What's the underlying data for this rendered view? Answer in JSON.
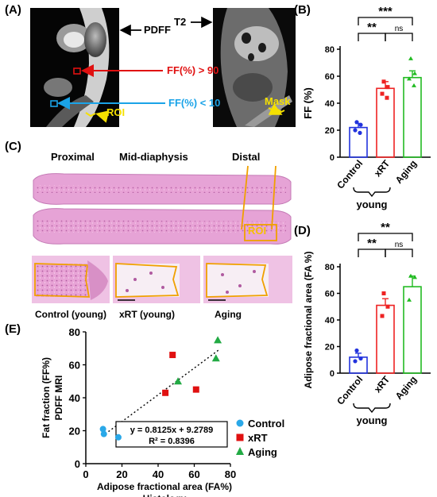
{
  "panels": {
    "a": "(A)",
    "b": "(B)",
    "c": "(C)",
    "d": "(D)",
    "e": "(E)"
  },
  "panel_a": {
    "pdff_label": "PDFF",
    "t2_label": "T2",
    "ff_high": "FF(%) > 90",
    "ff_low": "FF(%) < 10",
    "roi_label": "ROI",
    "mask_label": "Mask",
    "colors": {
      "high": "#e01010",
      "low": "#1aa3e8",
      "roi": "#f5e000"
    }
  },
  "panel_c": {
    "proximal": "Proximal",
    "mid": "Mid-diaphysis",
    "distal": "Distal",
    "roi_label": "ROI",
    "captions": [
      "Control (young)",
      "xRT (young)",
      "Aging"
    ],
    "colors": {
      "tissue": "#d77fc0",
      "outline": "#f0a000"
    }
  },
  "chart_data": [
    {
      "type": "bar",
      "panel": "B",
      "categories": [
        "Control",
        "xRT",
        "Aging"
      ],
      "group_label": "young",
      "values": [
        22,
        51,
        59
      ],
      "errors": [
        3,
        5,
        5
      ],
      "points": [
        [
          26,
          24,
          20,
          18
        ],
        [
          56,
          52,
          47,
          44
        ],
        [
          73,
          62,
          58,
          53
        ]
      ],
      "colors": [
        "#2233dd",
        "#ee2222",
        "#22bb22"
      ],
      "ylabel": "FF (%)",
      "ylim": [
        0,
        80
      ],
      "yticks": [
        0,
        20,
        40,
        60,
        80
      ],
      "significance": [
        {
          "from": 0,
          "to": 2,
          "label": "***"
        },
        {
          "from": 0,
          "to": 1,
          "label": "**"
        },
        {
          "from": 1,
          "to": 2,
          "label": "ns"
        }
      ]
    },
    {
      "type": "bar",
      "panel": "D",
      "categories": [
        "Control",
        "xRT",
        "Aging"
      ],
      "group_label": "young",
      "values": [
        12,
        51,
        65
      ],
      "errors": [
        3,
        5,
        8
      ],
      "points": [
        [
          17,
          11,
          9
        ],
        [
          60,
          50,
          43
        ],
        [
          73,
          72,
          55
        ]
      ],
      "colors": [
        "#2233dd",
        "#ee2222",
        "#22bb22"
      ],
      "ylabel": "Adipose fractional area (FA %)",
      "ylim": [
        0,
        80
      ],
      "yticks": [
        0,
        20,
        40,
        60,
        80
      ],
      "significance": [
        {
          "from": 0,
          "to": 2,
          "label": "**"
        },
        {
          "from": 0,
          "to": 1,
          "label": "**"
        },
        {
          "from": 1,
          "to": 2,
          "label": "ns"
        }
      ]
    },
    {
      "type": "scatter",
      "panel": "E",
      "xlabel": "Adipose fractional area (FA%)",
      "xlabel2": "Histology",
      "ylabel": "Fat fraction (FF%)",
      "ylabel2": "PDFF MRI",
      "xlim": [
        0,
        80
      ],
      "ylim": [
        0,
        80
      ],
      "xticks": [
        0,
        20,
        40,
        60,
        80
      ],
      "yticks": [
        0,
        20,
        40,
        60,
        80
      ],
      "equation": "y = 0.8125x + 9.2789",
      "r2": "R² = 0.8396",
      "fit": {
        "slope": 0.8125,
        "intercept": 9.2789,
        "x_range": [
          9,
          74
        ]
      },
      "series": [
        {
          "name": "Control",
          "color": "#2aa8e8",
          "marker": "circle",
          "x": [
            9.5,
            10,
            18
          ],
          "y": [
            21,
            18,
            16
          ]
        },
        {
          "name": "xRT",
          "color": "#e01010",
          "marker": "square",
          "x": [
            44,
            48,
            61
          ],
          "y": [
            43,
            66,
            45
          ]
        },
        {
          "name": "Aging",
          "color": "#22aa44",
          "marker": "triangle",
          "x": [
            51,
            72,
            73
          ],
          "y": [
            50,
            64,
            75
          ]
        }
      ]
    }
  ]
}
